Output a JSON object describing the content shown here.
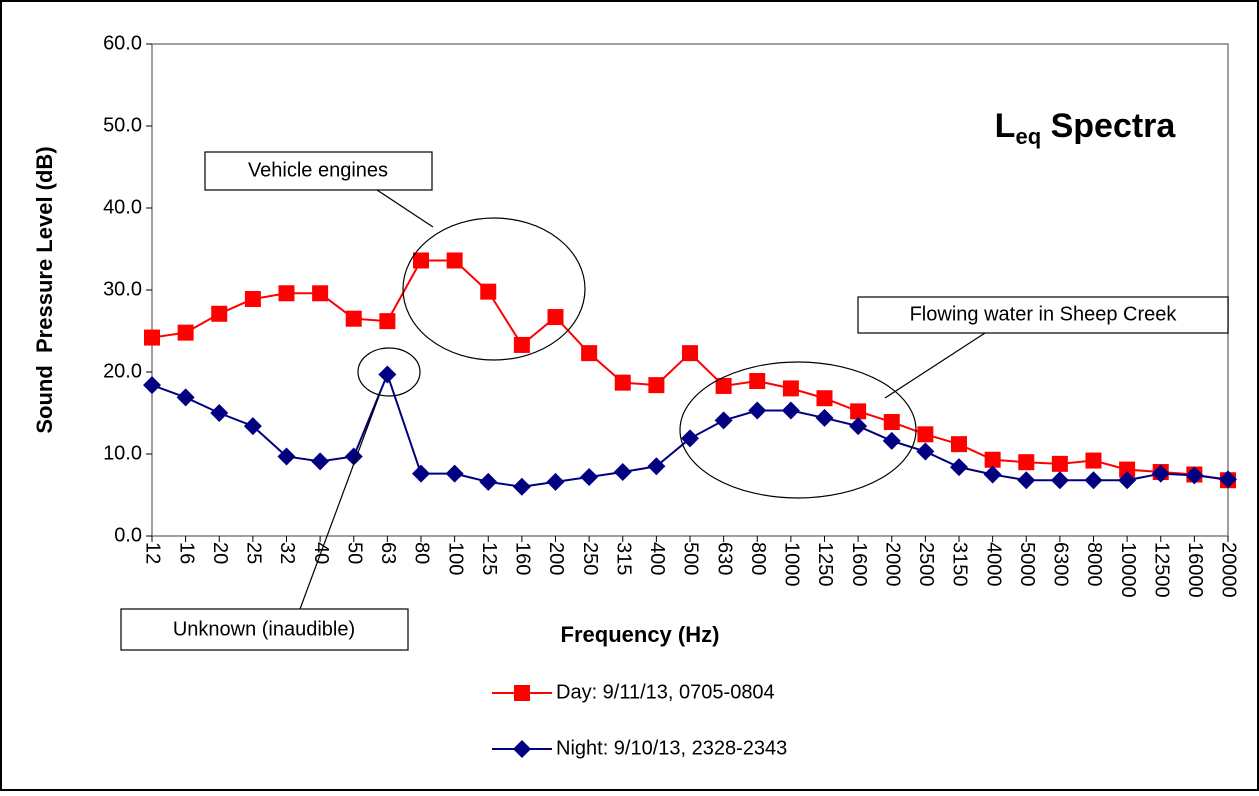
{
  "chart_data": {
    "type": "line",
    "title": {
      "text": "L",
      "subscript": "eq",
      "suffix": " Spectra"
    },
    "x_label": "Frequency (Hz)",
    "y_label": "Sound  Pressure Level (dB)",
    "categories": [
      "12",
      "16",
      "20",
      "25",
      "32",
      "40",
      "50",
      "63",
      "80",
      "100",
      "125",
      "160",
      "200",
      "250",
      "315",
      "400",
      "500",
      "630",
      "800",
      "1000",
      "1250",
      "1600",
      "2000",
      "2500",
      "3150",
      "4000",
      "5000",
      "6300",
      "8000",
      "10000",
      "12500",
      "16000",
      "20000"
    ],
    "series": [
      {
        "name": "Day: 9/11/13, 0705-0804",
        "color": "#ff0000",
        "marker": "square",
        "values": [
          24.2,
          24.8,
          27.1,
          28.9,
          29.6,
          29.6,
          26.5,
          26.2,
          33.6,
          33.6,
          29.8,
          23.3,
          26.7,
          22.3,
          18.7,
          18.4,
          22.3,
          18.3,
          18.9,
          18.0,
          16.8,
          15.2,
          13.9,
          12.4,
          11.2,
          9.3,
          9.0,
          8.8,
          9.2,
          8.1,
          7.8,
          7.5,
          6.8
        ]
      },
      {
        "name": "Night: 9/10/13, 2328-2343",
        "color": "#000080",
        "marker": "diamond",
        "values": [
          18.4,
          16.9,
          15.0,
          13.4,
          9.7,
          9.1,
          9.7,
          19.7,
          7.6,
          7.6,
          6.6,
          6.0,
          6.6,
          7.2,
          7.8,
          8.5,
          11.9,
          14.1,
          15.3,
          15.3,
          14.4,
          13.4,
          11.6,
          10.3,
          8.4,
          7.5,
          6.8,
          6.8,
          6.8,
          6.8,
          7.6,
          7.4,
          6.9
        ]
      }
    ],
    "ylim": [
      0,
      60
    ],
    "yticks": [
      {
        "value": 0,
        "label": "0.0"
      },
      {
        "value": 10,
        "label": "10.0"
      },
      {
        "value": 20,
        "label": "20.0"
      },
      {
        "value": 30,
        "label": "30.0"
      },
      {
        "value": 40,
        "label": "40.0"
      },
      {
        "value": 50,
        "label": "50.0"
      },
      {
        "value": 60,
        "label": "60.0"
      }
    ],
    "grid": false,
    "annotations": [
      "Vehicle engines",
      "Flowing water in Sheep Creek",
      "Unknown (inaudible)"
    ]
  }
}
